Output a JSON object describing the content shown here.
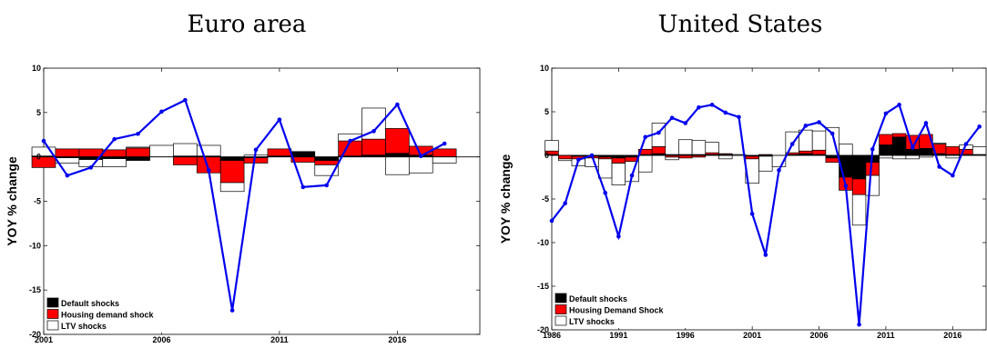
{
  "titles": [
    "Euro area",
    "United States"
  ],
  "chart_data": [
    {
      "type": "bar",
      "title": "Euro area",
      "ylabel": "YOY % change",
      "xlabel": "",
      "ylim": [
        -20,
        10
      ],
      "xlim": [
        2001,
        2019.5
      ],
      "yticks": [
        10,
        5,
        0,
        -5,
        -10,
        -15,
        -20
      ],
      "xticks": [
        2001,
        2006,
        2011,
        2016
      ],
      "grid": false,
      "legend_position": "bottom-left",
      "x": [
        2001,
        2002,
        2003,
        2004,
        2005,
        2006,
        2007,
        2008,
        2009,
        2010,
        2011,
        2012,
        2013,
        2014,
        2015,
        2016,
        2017,
        2018
      ],
      "series": [
        {
          "name": "Default shocks",
          "color": "#000000",
          "kind": "bar",
          "values": [
            0.1,
            -0.1,
            -0.3,
            -0.2,
            -0.4,
            0.0,
            0.1,
            0.1,
            -0.4,
            -0.1,
            0.1,
            0.6,
            -0.4,
            0.1,
            0.2,
            0.4,
            0.2,
            0.0
          ]
        },
        {
          "name": "Housing demand shock",
          "color": "#ff0000",
          "kind": "bar",
          "values": [
            -1.2,
            0.9,
            0.9,
            0.8,
            1.0,
            0.0,
            -0.9,
            -1.8,
            -2.5,
            -0.6,
            0.8,
            -0.6,
            -0.5,
            1.7,
            1.8,
            2.8,
            1.0,
            0.9
          ]
        },
        {
          "name": "LTV shocks",
          "color": "#ffffff",
          "kind": "bar",
          "values": [
            1.0,
            -0.6,
            -0.8,
            -0.9,
            0.1,
            1.3,
            1.4,
            1.2,
            -1.0,
            0.2,
            0.0,
            0.0,
            -1.2,
            0.8,
            3.5,
            -2.0,
            -1.8,
            -0.7
          ]
        },
        {
          "name": "",
          "color": "#0000ee",
          "kind": "line",
          "values": [
            1.8,
            -2.1,
            -1.2,
            2.0,
            2.6,
            5.1,
            6.4,
            -1.5,
            -17.3,
            0.8,
            4.2,
            -3.4,
            -3.2,
            1.8,
            2.9,
            5.9,
            0.1,
            1.5
          ]
        }
      ]
    },
    {
      "type": "bar",
      "title": "United States",
      "ylabel": "YOY % change",
      "xlabel": "",
      "ylim": [
        -20,
        10
      ],
      "xlim": [
        1986,
        2018.5
      ],
      "yticks": [
        10,
        5,
        0,
        -5,
        -10,
        -15,
        -20
      ],
      "xticks": [
        1986,
        1991,
        1996,
        2001,
        2006,
        2011,
        2016
      ],
      "grid": false,
      "legend_position": "bottom-left",
      "x": [
        1986,
        1987,
        1988,
        1989,
        1990,
        1991,
        1992,
        1993,
        1994,
        1995,
        1996,
        1997,
        1998,
        1999,
        2000,
        2001,
        2002,
        2003,
        2004,
        2005,
        2006,
        2007,
        2008,
        2009,
        2010,
        2011,
        2012,
        2013,
        2014,
        2015,
        2016,
        2017,
        2018
      ],
      "series": [
        {
          "name": "Default shocks",
          "color": "#000000",
          "kind": "bar",
          "values": [
            0.1,
            0.0,
            -0.1,
            -0.1,
            -0.2,
            -0.3,
            -0.2,
            0.1,
            0.2,
            0.1,
            0.1,
            0.1,
            0.1,
            0.1,
            0.0,
            -0.1,
            -0.1,
            0.0,
            0.1,
            0.2,
            0.1,
            -0.3,
            -2.5,
            -2.7,
            -0.8,
            1.2,
            2.1,
            0.7,
            0.8,
            0.2,
            0.1,
            0.1,
            0.1
          ]
        },
        {
          "name": "Housing Demand Shock",
          "color": "#ff0000",
          "kind": "bar",
          "values": [
            0.4,
            -0.4,
            -0.3,
            -0.2,
            -0.2,
            -0.6,
            -0.5,
            0.6,
            0.8,
            -0.2,
            -0.3,
            -0.2,
            0.2,
            0.1,
            0.0,
            -0.3,
            0.1,
            0.0,
            0.2,
            0.3,
            0.5,
            -0.5,
            -1.5,
            -1.8,
            -1.5,
            1.2,
            0.4,
            1.6,
            1.6,
            1.1,
            0.9,
            0.6,
            0.0
          ]
        },
        {
          "name": "LTV shocks",
          "color": "#ffffff",
          "kind": "bar",
          "values": [
            1.2,
            -0.2,
            -0.8,
            -1.0,
            -2.2,
            -2.5,
            -2.3,
            -1.9,
            2.7,
            -0.3,
            1.7,
            1.6,
            1.2,
            -0.4,
            0.1,
            -2.8,
            -1.7,
            -1.3,
            2.4,
            2.4,
            2.2,
            3.2,
            1.3,
            -3.5,
            -2.3,
            -0.3,
            -0.4,
            -0.4,
            -0.2,
            0.1,
            -0.3,
            0.5,
            0.9
          ]
        },
        {
          "name": "",
          "color": "#0000ee",
          "kind": "line",
          "values": [
            -7.5,
            -5.5,
            -0.5,
            0.0,
            -4.3,
            -9.3,
            -2.3,
            2.1,
            2.6,
            4.3,
            3.7,
            5.5,
            5.8,
            4.9,
            4.4,
            -6.7,
            -11.4,
            -1.7,
            1.3,
            3.4,
            3.8,
            2.5,
            -3.5,
            -19.4,
            0.7,
            4.8,
            5.8,
            0.9,
            3.7,
            -1.3,
            -2.3,
            1.3,
            3.3
          ]
        }
      ]
    }
  ]
}
